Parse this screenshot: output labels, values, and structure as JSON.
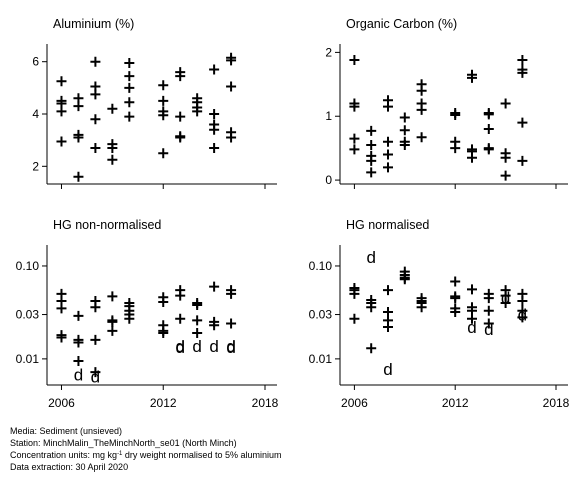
{
  "chart_data": [
    {
      "type": "scatter",
      "title": "Aluminium (%)",
      "yscale": "linear",
      "ylim": [
        1.4,
        6.6
      ],
      "yticks": [
        2,
        4,
        6
      ],
      "ytick_labels": [
        "2",
        "4",
        "6"
      ],
      "xlim": [
        2005.5,
        2018
      ],
      "xticks": [
        2006,
        2012,
        2018
      ],
      "xtick_labels": [],
      "points": [
        {
          "x": 2006,
          "y": 2.95,
          "m": "+"
        },
        {
          "x": 2006,
          "y": 4.4,
          "m": "+"
        },
        {
          "x": 2006,
          "y": 4.5,
          "m": "+"
        },
        {
          "x": 2006,
          "y": 4.1,
          "m": "+"
        },
        {
          "x": 2006,
          "y": 5.25,
          "m": "+"
        },
        {
          "x": 2007,
          "y": 1.6,
          "m": "+"
        },
        {
          "x": 2007,
          "y": 3.1,
          "m": "+"
        },
        {
          "x": 2007,
          "y": 3.2,
          "m": "+"
        },
        {
          "x": 2007,
          "y": 4.3,
          "m": "+"
        },
        {
          "x": 2007,
          "y": 4.6,
          "m": "+"
        },
        {
          "x": 2008,
          "y": 2.7,
          "m": "+"
        },
        {
          "x": 2008,
          "y": 3.8,
          "m": "+"
        },
        {
          "x": 2008,
          "y": 4.75,
          "m": "+"
        },
        {
          "x": 2008,
          "y": 5.05,
          "m": "+"
        },
        {
          "x": 2008,
          "y": 6.0,
          "m": "+"
        },
        {
          "x": 2009,
          "y": 2.25,
          "m": "+"
        },
        {
          "x": 2009,
          "y": 2.7,
          "m": "+"
        },
        {
          "x": 2009,
          "y": 2.85,
          "m": "+"
        },
        {
          "x": 2009,
          "y": 4.2,
          "m": "+"
        },
        {
          "x": 2010,
          "y": 3.9,
          "m": "+"
        },
        {
          "x": 2010,
          "y": 4.45,
          "m": "+"
        },
        {
          "x": 2010,
          "y": 5.0,
          "m": "+"
        },
        {
          "x": 2010,
          "y": 5.45,
          "m": "+"
        },
        {
          "x": 2010,
          "y": 5.95,
          "m": "+"
        },
        {
          "x": 2012,
          "y": 2.5,
          "m": "+"
        },
        {
          "x": 2012,
          "y": 3.95,
          "m": "+"
        },
        {
          "x": 2012,
          "y": 4.1,
          "m": "+"
        },
        {
          "x": 2012,
          "y": 4.5,
          "m": "+"
        },
        {
          "x": 2012,
          "y": 5.1,
          "m": "+"
        },
        {
          "x": 2013,
          "y": 3.1,
          "m": "+"
        },
        {
          "x": 2013,
          "y": 3.15,
          "m": "+"
        },
        {
          "x": 2013,
          "y": 3.9,
          "m": "+"
        },
        {
          "x": 2013,
          "y": 5.45,
          "m": "+"
        },
        {
          "x": 2013,
          "y": 5.6,
          "m": "+"
        },
        {
          "x": 2014,
          "y": 4.1,
          "m": "+"
        },
        {
          "x": 2014,
          "y": 4.25,
          "m": "+"
        },
        {
          "x": 2014,
          "y": 4.45,
          "m": "+"
        },
        {
          "x": 2014,
          "y": 4.6,
          "m": "+"
        },
        {
          "x": 2015,
          "y": 2.7,
          "m": "+"
        },
        {
          "x": 2015,
          "y": 3.4,
          "m": "+"
        },
        {
          "x": 2015,
          "y": 3.6,
          "m": "+"
        },
        {
          "x": 2015,
          "y": 4.0,
          "m": "+"
        },
        {
          "x": 2015,
          "y": 5.7,
          "m": "+"
        },
        {
          "x": 2016,
          "y": 3.1,
          "m": "+"
        },
        {
          "x": 2016,
          "y": 3.3,
          "m": "+"
        },
        {
          "x": 2016,
          "y": 5.05,
          "m": "+"
        },
        {
          "x": 2016,
          "y": 6.05,
          "m": "+"
        },
        {
          "x": 2016,
          "y": 6.15,
          "m": "+"
        }
      ]
    },
    {
      "type": "scatter",
      "title": "Organic Carbon (%)",
      "yscale": "linear",
      "ylim": [
        -0.03,
        2.1
      ],
      "yticks": [
        0,
        1,
        2
      ],
      "ytick_labels": [
        "0",
        "1",
        "2"
      ],
      "xlim": [
        2005.5,
        2018
      ],
      "xticks": [
        2006,
        2012,
        2018
      ],
      "xtick_labels": [],
      "points": [
        {
          "x": 2006,
          "y": 0.48,
          "m": "+"
        },
        {
          "x": 2006,
          "y": 0.65,
          "m": "+"
        },
        {
          "x": 2006,
          "y": 1.15,
          "m": "+"
        },
        {
          "x": 2006,
          "y": 1.2,
          "m": "+"
        },
        {
          "x": 2006,
          "y": 1.88,
          "m": "+"
        },
        {
          "x": 2007,
          "y": 0.12,
          "m": "+"
        },
        {
          "x": 2007,
          "y": 0.3,
          "m": "+"
        },
        {
          "x": 2007,
          "y": 0.38,
          "m": "+"
        },
        {
          "x": 2007,
          "y": 0.55,
          "m": "+"
        },
        {
          "x": 2007,
          "y": 0.77,
          "m": "+"
        },
        {
          "x": 2008,
          "y": 0.2,
          "m": "+"
        },
        {
          "x": 2008,
          "y": 0.4,
          "m": "+"
        },
        {
          "x": 2008,
          "y": 0.6,
          "m": "+"
        },
        {
          "x": 2008,
          "y": 1.15,
          "m": "+"
        },
        {
          "x": 2008,
          "y": 1.25,
          "m": "+"
        },
        {
          "x": 2009,
          "y": 0.55,
          "m": "+"
        },
        {
          "x": 2009,
          "y": 0.6,
          "m": "+"
        },
        {
          "x": 2009,
          "y": 0.78,
          "m": "+"
        },
        {
          "x": 2009,
          "y": 0.98,
          "m": "+"
        },
        {
          "x": 2010,
          "y": 0.67,
          "m": "+"
        },
        {
          "x": 2010,
          "y": 1.1,
          "m": "+"
        },
        {
          "x": 2010,
          "y": 1.2,
          "m": "+"
        },
        {
          "x": 2010,
          "y": 1.4,
          "m": "+"
        },
        {
          "x": 2010,
          "y": 1.5,
          "m": "+"
        },
        {
          "x": 2012,
          "y": 0.5,
          "m": "+"
        },
        {
          "x": 2012,
          "y": 0.6,
          "m": "+"
        },
        {
          "x": 2012,
          "y": 1.02,
          "m": "+"
        },
        {
          "x": 2012,
          "y": 1.05,
          "m": "+"
        },
        {
          "x": 2013,
          "y": 0.35,
          "m": "+"
        },
        {
          "x": 2013,
          "y": 0.45,
          "m": "+"
        },
        {
          "x": 2013,
          "y": 0.48,
          "m": "+"
        },
        {
          "x": 2013,
          "y": 1.6,
          "m": "+"
        },
        {
          "x": 2013,
          "y": 1.65,
          "m": "+"
        },
        {
          "x": 2014,
          "y": 0.48,
          "m": "+"
        },
        {
          "x": 2014,
          "y": 0.5,
          "m": "+"
        },
        {
          "x": 2014,
          "y": 0.8,
          "m": "+"
        },
        {
          "x": 2014,
          "y": 1.03,
          "m": "+"
        },
        {
          "x": 2014,
          "y": 1.05,
          "m": "+"
        },
        {
          "x": 2015,
          "y": 0.07,
          "m": "+"
        },
        {
          "x": 2015,
          "y": 0.35,
          "m": "+"
        },
        {
          "x": 2015,
          "y": 0.42,
          "m": "+"
        },
        {
          "x": 2015,
          "y": 1.2,
          "m": "+"
        },
        {
          "x": 2016,
          "y": 0.3,
          "m": "+"
        },
        {
          "x": 2016,
          "y": 0.9,
          "m": "+"
        },
        {
          "x": 2016,
          "y": 1.68,
          "m": "+"
        },
        {
          "x": 2016,
          "y": 1.73,
          "m": "+"
        },
        {
          "x": 2016,
          "y": 1.88,
          "m": "+"
        }
      ]
    },
    {
      "type": "scatter",
      "title": "HG non-normalised",
      "yscale": "log",
      "ylim": [
        0.0055,
        0.16
      ],
      "yticks": [
        0.01,
        0.03,
        0.1
      ],
      "ytick_labels": [
        "0.01",
        "0.03",
        "0.10"
      ],
      "xlim": [
        2005.5,
        2018
      ],
      "xticks": [
        2006,
        2012,
        2018
      ],
      "xtick_labels": [
        "2006",
        "2012",
        "2018"
      ],
      "points": [
        {
          "x": 2006,
          "y": 0.017,
          "m": "+"
        },
        {
          "x": 2006,
          "y": 0.018,
          "m": "+"
        },
        {
          "x": 2006,
          "y": 0.035,
          "m": "+"
        },
        {
          "x": 2006,
          "y": 0.042,
          "m": "+"
        },
        {
          "x": 2006,
          "y": 0.05,
          "m": "+"
        },
        {
          "x": 2007,
          "y": 0.0068,
          "m": "d"
        },
        {
          "x": 2007,
          "y": 0.0095,
          "m": "+"
        },
        {
          "x": 2007,
          "y": 0.015,
          "m": "+"
        },
        {
          "x": 2007,
          "y": 0.016,
          "m": "+"
        },
        {
          "x": 2007,
          "y": 0.029,
          "m": "+"
        },
        {
          "x": 2008,
          "y": 0.0065,
          "m": "d"
        },
        {
          "x": 2008,
          "y": 0.0072,
          "m": "+"
        },
        {
          "x": 2008,
          "y": 0.016,
          "m": "+"
        },
        {
          "x": 2008,
          "y": 0.036,
          "m": "+"
        },
        {
          "x": 2008,
          "y": 0.042,
          "m": "+"
        },
        {
          "x": 2009,
          "y": 0.02,
          "m": "+"
        },
        {
          "x": 2009,
          "y": 0.025,
          "m": "+"
        },
        {
          "x": 2009,
          "y": 0.026,
          "m": "+"
        },
        {
          "x": 2009,
          "y": 0.047,
          "m": "+"
        },
        {
          "x": 2010,
          "y": 0.027,
          "m": "+"
        },
        {
          "x": 2010,
          "y": 0.03,
          "m": "+"
        },
        {
          "x": 2010,
          "y": 0.033,
          "m": "+"
        },
        {
          "x": 2010,
          "y": 0.037,
          "m": "+"
        },
        {
          "x": 2010,
          "y": 0.04,
          "m": "+"
        },
        {
          "x": 2012,
          "y": 0.019,
          "m": "+"
        },
        {
          "x": 2012,
          "y": 0.02,
          "m": "+"
        },
        {
          "x": 2012,
          "y": 0.023,
          "m": "+"
        },
        {
          "x": 2012,
          "y": 0.041,
          "m": "+"
        },
        {
          "x": 2012,
          "y": 0.046,
          "m": "+"
        },
        {
          "x": 2013,
          "y": 0.0135,
          "m": "d"
        },
        {
          "x": 2013,
          "y": 0.0138,
          "m": "d"
        },
        {
          "x": 2013,
          "y": 0.027,
          "m": "+"
        },
        {
          "x": 2013,
          "y": 0.048,
          "m": "+"
        },
        {
          "x": 2013,
          "y": 0.055,
          "m": "+"
        },
        {
          "x": 2014,
          "y": 0.0138,
          "m": "d"
        },
        {
          "x": 2014,
          "y": 0.019,
          "m": "+"
        },
        {
          "x": 2014,
          "y": 0.026,
          "m": "+"
        },
        {
          "x": 2014,
          "y": 0.038,
          "m": "+"
        },
        {
          "x": 2014,
          "y": 0.04,
          "m": "+"
        },
        {
          "x": 2015,
          "y": 0.0138,
          "m": "d"
        },
        {
          "x": 2015,
          "y": 0.023,
          "m": "+"
        },
        {
          "x": 2015,
          "y": 0.025,
          "m": "+"
        },
        {
          "x": 2015,
          "y": 0.06,
          "m": "+"
        },
        {
          "x": 2016,
          "y": 0.0135,
          "m": "d"
        },
        {
          "x": 2016,
          "y": 0.0138,
          "m": "d"
        },
        {
          "x": 2016,
          "y": 0.024,
          "m": "+"
        },
        {
          "x": 2016,
          "y": 0.05,
          "m": "+"
        },
        {
          "x": 2016,
          "y": 0.055,
          "m": "+"
        }
      ]
    },
    {
      "type": "scatter",
      "title": "HG normalised",
      "yscale": "log",
      "ylim": [
        0.0055,
        0.16
      ],
      "yticks": [
        0.01,
        0.03,
        0.1
      ],
      "ytick_labels": [
        "0.01",
        "0.03",
        "0.10"
      ],
      "xlim": [
        2005.5,
        2018
      ],
      "xticks": [
        2006,
        2012,
        2018
      ],
      "xtick_labels": [
        "2006",
        "2012",
        "2018"
      ],
      "points": [
        {
          "x": 2006,
          "y": 0.027,
          "m": "+"
        },
        {
          "x": 2006,
          "y": 0.05,
          "m": "+"
        },
        {
          "x": 2006,
          "y": 0.055,
          "m": "+"
        },
        {
          "x": 2006,
          "y": 0.058,
          "m": "+"
        },
        {
          "x": 2007,
          "y": 0.013,
          "m": "+"
        },
        {
          "x": 2007,
          "y": 0.036,
          "m": "+"
        },
        {
          "x": 2007,
          "y": 0.04,
          "m": "+"
        },
        {
          "x": 2007,
          "y": 0.043,
          "m": "+"
        },
        {
          "x": 2007,
          "y": 0.125,
          "m": "d"
        },
        {
          "x": 2008,
          "y": 0.0078,
          "m": "d"
        },
        {
          "x": 2008,
          "y": 0.022,
          "m": "+"
        },
        {
          "x": 2008,
          "y": 0.026,
          "m": "+"
        },
        {
          "x": 2008,
          "y": 0.032,
          "m": "+"
        },
        {
          "x": 2008,
          "y": 0.055,
          "m": "+"
        },
        {
          "x": 2009,
          "y": 0.072,
          "m": "+"
        },
        {
          "x": 2009,
          "y": 0.075,
          "m": "+"
        },
        {
          "x": 2009,
          "y": 0.08,
          "m": "+"
        },
        {
          "x": 2009,
          "y": 0.087,
          "m": "+"
        },
        {
          "x": 2010,
          "y": 0.036,
          "m": "+"
        },
        {
          "x": 2010,
          "y": 0.04,
          "m": "+"
        },
        {
          "x": 2010,
          "y": 0.042,
          "m": "+"
        },
        {
          "x": 2010,
          "y": 0.045,
          "m": "+"
        },
        {
          "x": 2012,
          "y": 0.032,
          "m": "+"
        },
        {
          "x": 2012,
          "y": 0.035,
          "m": "+"
        },
        {
          "x": 2012,
          "y": 0.045,
          "m": "+"
        },
        {
          "x": 2012,
          "y": 0.047,
          "m": "+"
        },
        {
          "x": 2012,
          "y": 0.068,
          "m": "+"
        },
        {
          "x": 2013,
          "y": 0.022,
          "m": "d"
        },
        {
          "x": 2013,
          "y": 0.027,
          "m": "+"
        },
        {
          "x": 2013,
          "y": 0.033,
          "m": "+"
        },
        {
          "x": 2013,
          "y": 0.036,
          "m": "+"
        },
        {
          "x": 2013,
          "y": 0.056,
          "m": "+"
        },
        {
          "x": 2014,
          "y": 0.021,
          "m": "d"
        },
        {
          "x": 2014,
          "y": 0.024,
          "m": "+"
        },
        {
          "x": 2014,
          "y": 0.033,
          "m": "+"
        },
        {
          "x": 2014,
          "y": 0.045,
          "m": "+"
        },
        {
          "x": 2014,
          "y": 0.05,
          "m": "+"
        },
        {
          "x": 2015,
          "y": 0.04,
          "m": "+"
        },
        {
          "x": 2015,
          "y": 0.046,
          "m": "d"
        },
        {
          "x": 2015,
          "y": 0.048,
          "m": "+"
        },
        {
          "x": 2015,
          "y": 0.055,
          "m": "+"
        },
        {
          "x": 2016,
          "y": 0.028,
          "m": "+"
        },
        {
          "x": 2016,
          "y": 0.03,
          "m": "d"
        },
        {
          "x": 2016,
          "y": 0.033,
          "m": "+"
        },
        {
          "x": 2016,
          "y": 0.042,
          "m": "+"
        },
        {
          "x": 2016,
          "y": 0.05,
          "m": "+"
        }
      ]
    }
  ],
  "footer": {
    "media": "Media: Sediment (unsieved)",
    "station": "Station: MinchMalin_TheMinchNorth_se01 (North Minch)",
    "units_prefix": "Concentration units:  mg kg",
    "units_sup": "-1",
    "units_suffix": " dry weight normalised to 5% aluminium",
    "extraction": "Data extraction: 30 April 2020"
  }
}
